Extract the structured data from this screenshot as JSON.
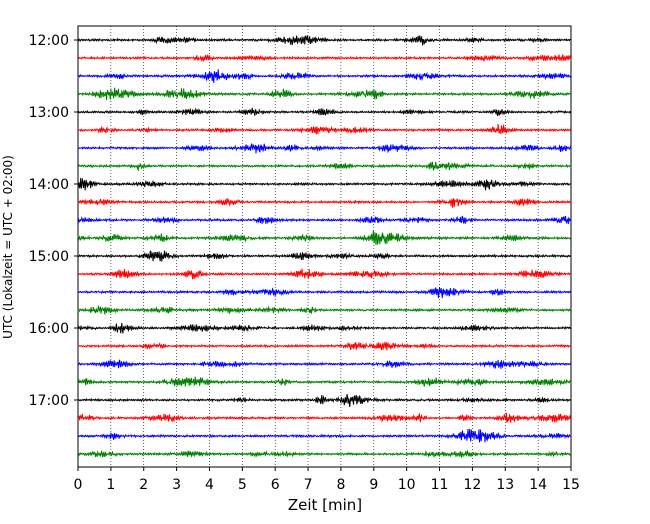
{
  "chart_data": {
    "type": "line",
    "title": "",
    "xlabel": "Zeit  [min]",
    "ylabel": "UTC (Lokalzeit = UTC + 02:00)",
    "xlim": [
      0,
      15
    ],
    "x_ticks": [
      0,
      1,
      2,
      3,
      4,
      5,
      6,
      7,
      8,
      9,
      10,
      11,
      12,
      13,
      14,
      15
    ],
    "x_tick_labels": [
      "0",
      "1",
      "2",
      "3",
      "4",
      "5",
      "6",
      "7",
      "8",
      "9",
      "10",
      "11",
      "12",
      "13",
      "14",
      "15"
    ],
    "y_tick_labels": [
      "12:00",
      "13:00",
      "14:00",
      "15:00",
      "16:00",
      "17:00"
    ],
    "y_tick_trace_index": [
      0,
      4,
      8,
      12,
      16,
      20
    ],
    "trace_count": 24,
    "trace_interval_min": 15,
    "trace_colors": [
      "#000000",
      "#ff0000",
      "#0000ff",
      "#008000"
    ],
    "grid": "vertical-dotted",
    "legend": "none"
  }
}
